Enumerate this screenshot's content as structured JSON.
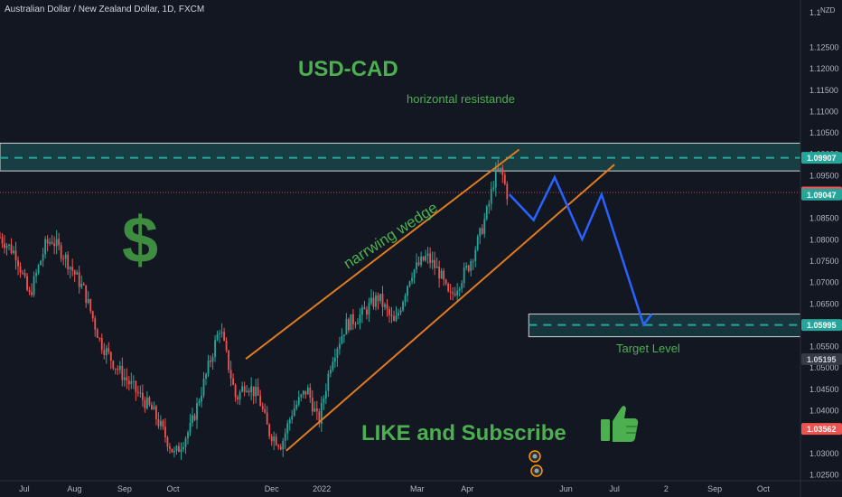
{
  "header": {
    "symbol_title": "Australian Dollar / New Zealand Dollar, 1D, FXCM"
  },
  "axis": {
    "currency": "NZD"
  },
  "colors": {
    "background": "#131722",
    "up": "#26a69a",
    "down": "#ef5350",
    "zone": "#26a69a",
    "wedge": "#e07b1f",
    "projection": "#2962ff",
    "annotation_green": "#4caf50",
    "text": "#b2b5be"
  },
  "annotations": {
    "title": "USD-CAD",
    "resistance_label": "horizontal resistande",
    "wedge_label": "narrwing wedge",
    "target_label": "Target Level",
    "cta": "LIKE and Subscribe",
    "dollar_sign": "$"
  },
  "chart_data": {
    "type": "candlestick",
    "ylim": [
      1.0235,
      1.136
    ],
    "y_ticks": [
      1.025,
      1.03,
      1.035,
      1.04,
      1.045,
      1.05,
      1.055,
      1.06,
      1.065,
      1.07,
      1.075,
      1.08,
      1.085,
      1.09,
      1.095,
      1.1,
      1.105,
      1.11,
      1.115,
      1.12,
      1.125
    ],
    "y_tick_labels": [
      "1.02500",
      "1.03000",
      "1.03500",
      "1.04000",
      "1.04500",
      "1.05000",
      "1.05500",
      "1.06000",
      "1.06500",
      "1.07000",
      "1.07500",
      "1.08000",
      "1.08500",
      "1.09000",
      "1.09500",
      "1.10000",
      "1.10500",
      "1.11000",
      "1.11500",
      "1.12000",
      "1.12500"
    ],
    "top_tick_label": "1.1",
    "x_ticks": [
      {
        "label": "Jul",
        "day": 15
      },
      {
        "label": "Aug",
        "day": 46
      },
      {
        "label": "Sep",
        "day": 77
      },
      {
        "label": "Oct",
        "day": 107
      },
      {
        "label": "Dec",
        "day": 168
      },
      {
        "label": "2022",
        "day": 199
      },
      {
        "label": "Mar",
        "day": 258
      },
      {
        "label": "Apr",
        "day": 289
      },
      {
        "label": "Jun",
        "day": 350
      },
      {
        "label": "Jul",
        "day": 380
      },
      {
        "label": "2",
        "day": 412
      },
      {
        "label": "Sep",
        "day": 442
      },
      {
        "label": "Oct",
        "day": 472
      }
    ],
    "x_range": [
      0,
      495
    ],
    "price_labels": [
      {
        "value": 1.09907,
        "text": "1.09907",
        "bg": "#26a69a",
        "fg": "#ffffff"
      },
      {
        "value": 1.09096,
        "text": "1.09096",
        "bg": "#ef5350",
        "fg": "#ffffff"
      },
      {
        "value": 1.09047,
        "text": "1.09047",
        "bg": "#26a69a",
        "fg": "#ffffff"
      },
      {
        "value": 1.05995,
        "text": "1.05995",
        "bg": "#26a69a",
        "fg": "#ffffff"
      },
      {
        "value": 1.05195,
        "text": "1.05195",
        "bg": "#363a45",
        "fg": "#d1d4dc"
      },
      {
        "value": 1.03562,
        "text": "1.03562",
        "bg": "#ef5350",
        "fg": "#ffffff"
      }
    ],
    "current_price": 1.09096,
    "anchors": [
      [
        0,
        1.0805
      ],
      [
        10,
        1.0765
      ],
      [
        18,
        1.0665
      ],
      [
        28,
        1.0785
      ],
      [
        32,
        1.08
      ],
      [
        40,
        1.076
      ],
      [
        52,
        1.068
      ],
      [
        62,
        1.056
      ],
      [
        72,
        1.05
      ],
      [
        84,
        1.0445
      ],
      [
        95,
        1.0395
      ],
      [
        108,
        1.0295
      ],
      [
        118,
        1.036
      ],
      [
        128,
        1.049
      ],
      [
        136,
        1.0595
      ],
      [
        146,
        1.0425
      ],
      [
        152,
        1.0465
      ],
      [
        160,
        1.043
      ],
      [
        166,
        1.035
      ],
      [
        174,
        1.032
      ],
      [
        181,
        1.04
      ],
      [
        190,
        1.045
      ],
      [
        197,
        1.037
      ],
      [
        205,
        1.052
      ],
      [
        214,
        1.06
      ],
      [
        224,
        1.0625
      ],
      [
        234,
        1.0665
      ],
      [
        244,
        1.06
      ],
      [
        254,
        1.072
      ],
      [
        264,
        1.076
      ],
      [
        272,
        1.072
      ],
      [
        278,
        1.066
      ],
      [
        284,
        1.07
      ],
      [
        290,
        1.074
      ],
      [
        296,
        1.08
      ],
      [
        302,
        1.0875
      ],
      [
        306,
        1.095
      ],
      [
        310,
        1.096
      ],
      [
        314,
        1.09
      ]
    ],
    "resistance_zone": {
      "low": 1.096,
      "high": 1.1025,
      "mid": 1.09907,
      "day_start": 0,
      "day_end": 495
    },
    "target_zone": {
      "low": 1.0572,
      "high": 1.0625,
      "mid": 1.05995,
      "day_start": 327,
      "day_end": 495
    },
    "wedge_upper": [
      [
        152,
        1.052
      ],
      [
        321,
        1.101
      ]
    ],
    "wedge_lower": [
      [
        177,
        1.0305
      ],
      [
        380,
        1.0975
      ]
    ],
    "projection_path": [
      [
        315,
        1.0905
      ],
      [
        330,
        1.0845
      ],
      [
        343,
        1.0945
      ],
      [
        360,
        1.08
      ],
      [
        372,
        1.0905
      ],
      [
        398,
        1.06
      ],
      [
        403,
        1.0625
      ]
    ]
  }
}
